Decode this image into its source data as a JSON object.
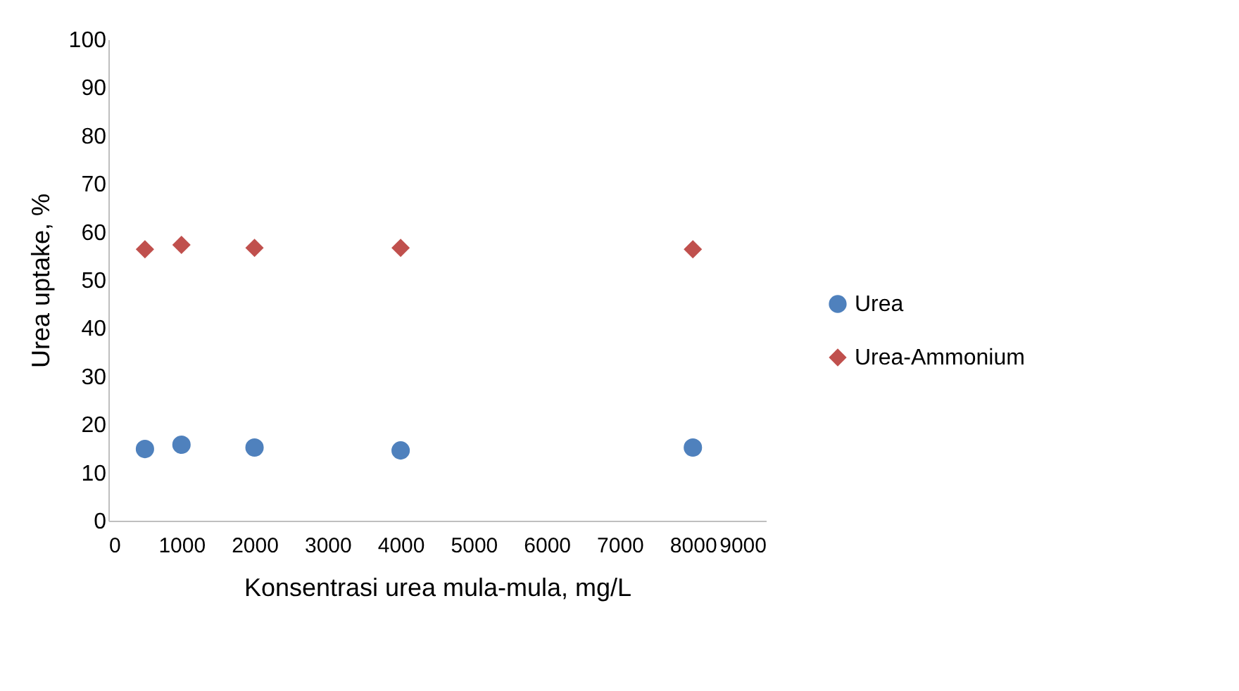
{
  "chart_data": {
    "type": "scatter",
    "xlabel": "Konsentrasi urea mula-mula, mg/L",
    "ylabel": "Urea uptake, %",
    "x": [
      500,
      1000,
      2000,
      4000,
      8000
    ],
    "series": [
      {
        "name": "Urea",
        "color": "#4f81bd",
        "marker": "circle",
        "values": [
          14.9,
          15.8,
          15.2,
          14.6,
          15.2
        ]
      },
      {
        "name": "Urea-Ammonium",
        "color": "#c0504d",
        "marker": "diamond",
        "values": [
          56.4,
          57.3,
          56.7,
          56.7,
          56.4
        ]
      }
    ],
    "xlim": [
      0,
      9000
    ],
    "xticks": [
      0,
      1000,
      2000,
      3000,
      4000,
      5000,
      6000,
      7000,
      8000,
      9000
    ],
    "ylim": [
      0,
      100
    ],
    "yticks": [
      0,
      10,
      20,
      30,
      40,
      50,
      60,
      70,
      80,
      90,
      100
    ],
    "grid": false,
    "legend": "right"
  }
}
